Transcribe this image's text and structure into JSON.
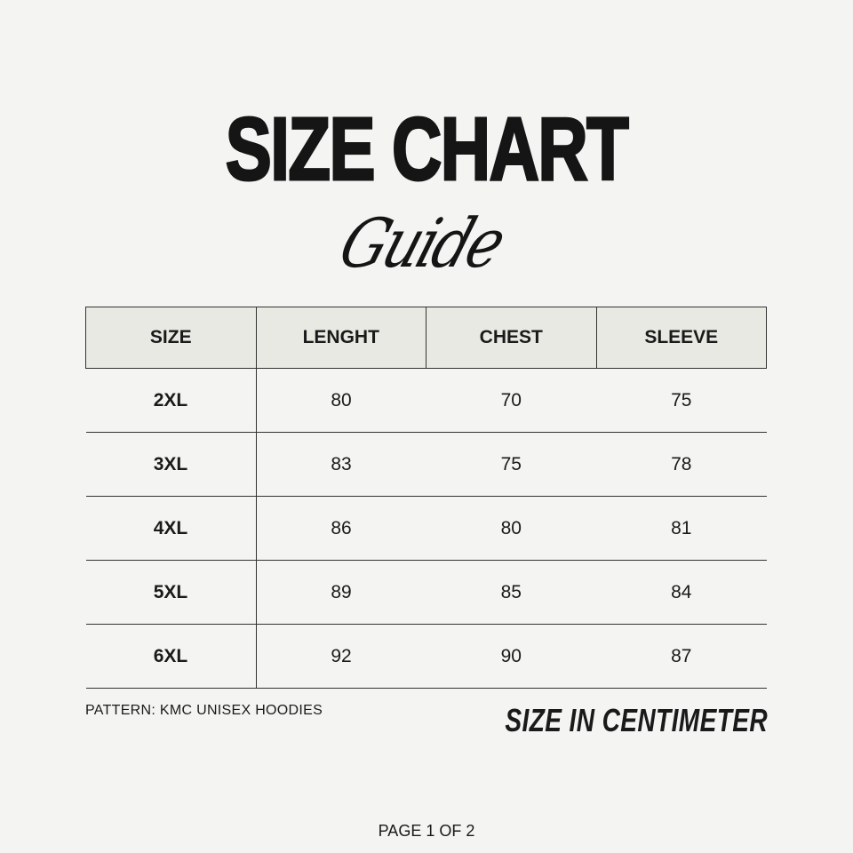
{
  "title": "SIZE CHART",
  "subtitle": "Guide",
  "table": {
    "headers": [
      "SIZE",
      "LENGHT",
      "CHEST",
      "SLEEVE"
    ],
    "rows": [
      [
        "2XL",
        "80",
        "70",
        "75"
      ],
      [
        "3XL",
        "83",
        "75",
        "78"
      ],
      [
        "4XL",
        "86",
        "80",
        "81"
      ],
      [
        "5XL",
        "89",
        "85",
        "84"
      ],
      [
        "6XL",
        "92",
        "90",
        "87"
      ]
    ]
  },
  "pattern": "PATTERN: KMC UNISEX HOODIES",
  "unit_note": "SIZE IN CENTIMETER",
  "page_indicator": "PAGE 1 OF 2",
  "colors": {
    "background": "#f4f4f2",
    "header_bg": "#e9e9e4",
    "text": "#1a1a1a"
  }
}
